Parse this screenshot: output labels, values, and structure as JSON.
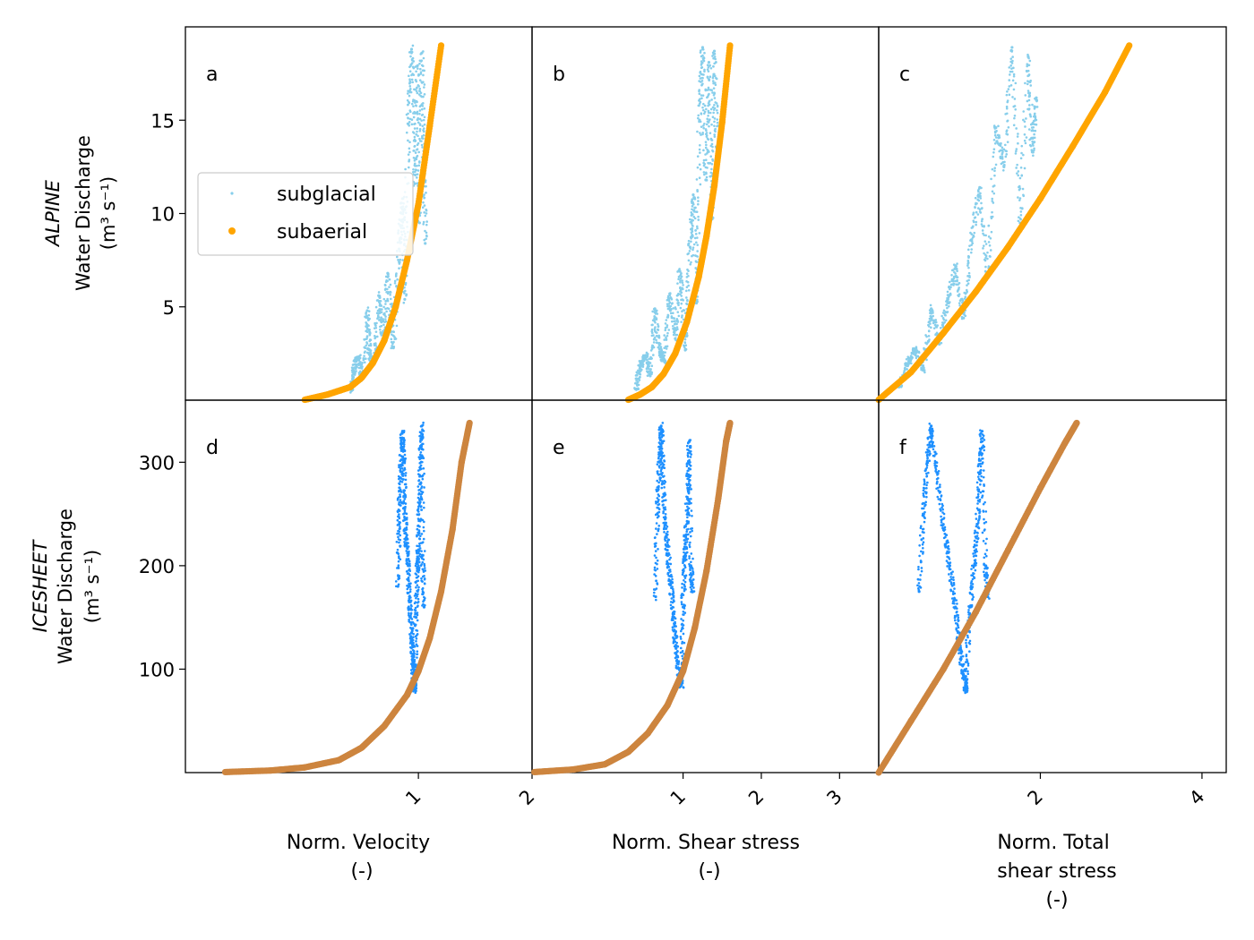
{
  "figure": {
    "row_labels": [
      {
        "title": "ALPINE",
        "line1": "Water Discharge",
        "line2": "(m³ s⁻¹)"
      },
      {
        "title": "ICESHEET",
        "line1": "Water Discharge",
        "line2": "(m³ s⁻¹)"
      }
    ],
    "col_labels": [
      {
        "lines": [
          "Norm. Velocity",
          "(-)"
        ]
      },
      {
        "lines": [
          "Norm. Shear stress",
          "(-)"
        ]
      },
      {
        "lines": [
          "Norm. Total",
          "shear stress",
          "(-)"
        ]
      }
    ],
    "legend": {
      "items": [
        "subglacial",
        "subaerial"
      ],
      "placement": "center-left of panel a"
    },
    "colors": {
      "subglacial_alpine": "#87CEEB",
      "subaerial_alpine": "#FFA500",
      "subglacial_icesheet": "#1E90FF",
      "subaerial_icesheet": "#CD853F"
    }
  },
  "chart_data": [
    {
      "panel": "a",
      "type": "scatter",
      "row": "ALPINE",
      "xlabel": "Norm. Velocity (-)",
      "xlim": [
        -1.05,
        2.0
      ],
      "ylim": [
        0,
        20
      ],
      "xticks": [
        1,
        2
      ],
      "yticks": [
        5,
        10,
        15
      ],
      "series": [
        {
          "name": "subglacial",
          "points": [
            [
              0.41,
              0.5
            ],
            [
              0.43,
              1.6
            ],
            [
              0.47,
              2.3
            ],
            [
              0.51,
              1.2
            ],
            [
              0.55,
              4.8
            ],
            [
              0.57,
              2.5
            ],
            [
              0.61,
              2.0
            ],
            [
              0.65,
              5.6
            ],
            [
              0.69,
              3.2
            ],
            [
              0.73,
              6.8
            ],
            [
              0.78,
              2.8
            ],
            [
              0.83,
              8.1
            ],
            [
              0.86,
              10.8
            ],
            [
              0.88,
              5.4
            ],
            [
              0.91,
              14.8
            ],
            [
              0.94,
              18.8
            ],
            [
              0.97,
              11.6
            ],
            [
              0.99,
              17.9
            ],
            [
              1.01,
              9.5
            ],
            [
              1.03,
              18.6
            ],
            [
              1.05,
              13.2
            ],
            [
              1.06,
              8.4
            ]
          ]
        },
        {
          "name": "subaerial",
          "points": [
            [
              0.0,
              0.02
            ],
            [
              0.2,
              0.3
            ],
            [
              0.4,
              0.7
            ],
            [
              0.5,
              1.2
            ],
            [
              0.6,
              2.0
            ],
            [
              0.7,
              3.2
            ],
            [
              0.8,
              5.0
            ],
            [
              0.9,
              7.5
            ],
            [
              1.0,
              10.5
            ],
            [
              1.1,
              14.7
            ],
            [
              1.2,
              19.0
            ]
          ]
        }
      ]
    },
    {
      "panel": "b",
      "type": "scatter",
      "row": "ALPINE",
      "xlabel": "Norm. Shear stress (-)",
      "xlim": [
        -0.93,
        3.5
      ],
      "ylim": [
        0,
        20
      ],
      "xticks": [
        1,
        2,
        3
      ],
      "yticks": [
        5,
        10,
        15
      ],
      "series": [
        {
          "name": "subglacial",
          "points": [
            [
              0.4,
              0.6
            ],
            [
              0.45,
              1.8
            ],
            [
              0.52,
              2.4
            ],
            [
              0.58,
              1.3
            ],
            [
              0.64,
              4.9
            ],
            [
              0.7,
              2.6
            ],
            [
              0.76,
              2.1
            ],
            [
              0.83,
              5.7
            ],
            [
              0.9,
              3.3
            ],
            [
              0.96,
              6.9
            ],
            [
              1.03,
              2.7
            ],
            [
              1.09,
              8.2
            ],
            [
              1.13,
              11.0
            ],
            [
              1.17,
              5.2
            ],
            [
              1.21,
              15.0
            ],
            [
              1.25,
              18.9
            ],
            [
              1.29,
              11.8
            ],
            [
              1.33,
              18.1
            ],
            [
              1.37,
              9.7
            ],
            [
              1.4,
              18.7
            ],
            [
              1.43,
              13.5
            ]
          ]
        },
        {
          "name": "subaerial",
          "points": [
            [
              0.3,
              0.02
            ],
            [
              0.45,
              0.3
            ],
            [
              0.6,
              0.7
            ],
            [
              0.75,
              1.4
            ],
            [
              0.9,
              2.5
            ],
            [
              1.05,
              4.2
            ],
            [
              1.2,
              6.6
            ],
            [
              1.3,
              8.8
            ],
            [
              1.4,
              11.5
            ],
            [
              1.5,
              14.9
            ],
            [
              1.6,
              19.0
            ]
          ]
        }
      ]
    },
    {
      "panel": "c",
      "type": "scatter",
      "row": "ALPINE",
      "xlabel": "Norm. Total shear stress (-)",
      "xlim": [
        0.0,
        4.3
      ],
      "ylim": [
        0,
        20
      ],
      "xticks": [
        2,
        4
      ],
      "yticks": [
        5,
        10,
        15
      ],
      "series": [
        {
          "name": "subglacial",
          "points": [
            [
              0.25,
              0.7
            ],
            [
              0.35,
              1.9
            ],
            [
              0.45,
              2.7
            ],
            [
              0.55,
              1.6
            ],
            [
              0.65,
              4.9
            ],
            [
              0.75,
              3.0
            ],
            [
              0.85,
              5.3
            ],
            [
              0.95,
              7.2
            ],
            [
              1.05,
              4.4
            ],
            [
              1.15,
              8.6
            ],
            [
              1.25,
              11.4
            ],
            [
              1.35,
              6.6
            ],
            [
              1.45,
              14.6
            ],
            [
              1.55,
              12.5
            ],
            [
              1.65,
              18.9
            ],
            [
              1.75,
              9.5
            ],
            [
              1.85,
              18.4
            ],
            [
              1.9,
              13.3
            ],
            [
              1.95,
              16.2
            ]
          ]
        },
        {
          "name": "subaerial",
          "points": [
            [
              0.0,
              0.02
            ],
            [
              0.4,
              1.5
            ],
            [
              0.8,
              3.6
            ],
            [
              1.2,
              5.8
            ],
            [
              1.6,
              8.2
            ],
            [
              2.0,
              10.8
            ],
            [
              2.4,
              13.6
            ],
            [
              2.8,
              16.5
            ],
            [
              3.1,
              19.0
            ]
          ]
        }
      ]
    },
    {
      "panel": "d",
      "type": "scatter",
      "row": "ICESHEET",
      "xlabel": "Norm. Velocity (-)",
      "xlim": [
        -1.05,
        2.0
      ],
      "ylim": [
        0,
        360
      ],
      "xticks": [
        1,
        2
      ],
      "yticks": [
        100,
        200,
        300
      ],
      "series": [
        {
          "name": "subglacial",
          "points": [
            [
              0.82,
              180
            ],
            [
              0.83,
              240
            ],
            [
              0.84,
              285
            ],
            [
              0.86,
              330
            ],
            [
              0.87,
              300
            ],
            [
              0.88,
              255
            ],
            [
              0.89,
              225
            ],
            [
              0.91,
              200
            ],
            [
              0.92,
              165
            ],
            [
              0.94,
              135
            ],
            [
              0.95,
              110
            ],
            [
              0.96,
              90
            ],
            [
              0.97,
              80
            ],
            [
              0.98,
              150
            ],
            [
              0.99,
              195
            ],
            [
              1.0,
              215
            ],
            [
              1.01,
              260
            ],
            [
              1.02,
              305
            ],
            [
              1.03,
              335
            ],
            [
              1.04,
              210
            ],
            [
              1.05,
              160
            ]
          ]
        },
        {
          "name": "subaerial",
          "points": [
            [
              -0.7,
              0.5
            ],
            [
              -0.3,
              2
            ],
            [
              0.0,
              5
            ],
            [
              0.3,
              12
            ],
            [
              0.5,
              24
            ],
            [
              0.7,
              45
            ],
            [
              0.9,
              75
            ],
            [
              1.0,
              98
            ],
            [
              1.1,
              130
            ],
            [
              1.2,
              175
            ],
            [
              1.3,
              235
            ],
            [
              1.38,
              300
            ],
            [
              1.45,
              338
            ]
          ]
        }
      ]
    },
    {
      "panel": "e",
      "type": "scatter",
      "row": "ICESHEET",
      "xlabel": "Norm. Shear stress (-)",
      "xlim": [
        -0.93,
        3.5
      ],
      "ylim": [
        0,
        360
      ],
      "xticks": [
        1,
        2,
        3
      ],
      "yticks": [
        100,
        200,
        300
      ],
      "series": [
        {
          "name": "subglacial",
          "points": [
            [
              0.65,
              170
            ],
            [
              0.67,
              250
            ],
            [
              0.7,
              300
            ],
            [
              0.72,
              335
            ],
            [
              0.74,
              295
            ],
            [
              0.77,
              245
            ],
            [
              0.8,
              215
            ],
            [
              0.84,
              185
            ],
            [
              0.88,
              150
            ],
            [
              0.91,
              120
            ],
            [
              0.95,
              95
            ],
            [
              0.98,
              85
            ],
            [
              1.0,
              160
            ],
            [
              1.02,
              205
            ],
            [
              1.04,
              230
            ],
            [
              1.06,
              275
            ],
            [
              1.08,
              320
            ],
            [
              1.1,
              200
            ],
            [
              1.12,
              175
            ]
          ]
        },
        {
          "name": "subaerial",
          "points": [
            [
              -0.9,
              0.5
            ],
            [
              -0.4,
              3
            ],
            [
              0.0,
              8
            ],
            [
              0.3,
              20
            ],
            [
              0.55,
              38
            ],
            [
              0.8,
              65
            ],
            [
              1.0,
              98
            ],
            [
              1.15,
              140
            ],
            [
              1.3,
              195
            ],
            [
              1.45,
              265
            ],
            [
              1.55,
              320
            ],
            [
              1.6,
              338
            ]
          ]
        }
      ]
    },
    {
      "panel": "f",
      "type": "scatter",
      "row": "ICESHEET",
      "xlabel": "Norm. Total shear stress (-)",
      "xlim": [
        0.0,
        4.3
      ],
      "ylim": [
        0,
        360
      ],
      "xticks": [
        2,
        4
      ],
      "yticks": [
        100,
        200,
        300
      ],
      "series": [
        {
          "name": "subglacial",
          "points": [
            [
              0.5,
              175
            ],
            [
              0.55,
              250
            ],
            [
              0.6,
              300
            ],
            [
              0.65,
              335
            ],
            [
              0.72,
              290
            ],
            [
              0.8,
              240
            ],
            [
              0.88,
              200
            ],
            [
              0.95,
              160
            ],
            [
              1.0,
              120
            ],
            [
              1.05,
              95
            ],
            [
              1.08,
              80
            ],
            [
              1.12,
              150
            ],
            [
              1.18,
              200
            ],
            [
              1.22,
              240
            ],
            [
              1.25,
              290
            ],
            [
              1.28,
              330
            ],
            [
              1.32,
              200
            ],
            [
              1.35,
              170
            ]
          ]
        },
        {
          "name": "subaerial",
          "points": [
            [
              0.0,
              0
            ],
            [
              0.4,
              50
            ],
            [
              0.8,
              100
            ],
            [
              1.2,
              155
            ],
            [
              1.6,
              215
            ],
            [
              2.0,
              275
            ],
            [
              2.3,
              318
            ],
            [
              2.45,
              338
            ]
          ]
        }
      ]
    }
  ]
}
